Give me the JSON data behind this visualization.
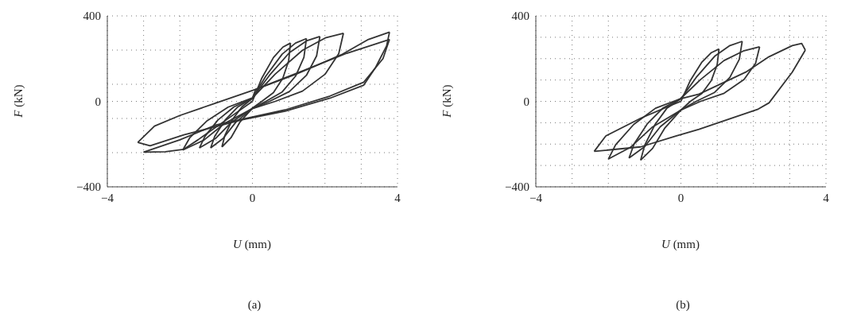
{
  "chart_data": [
    {
      "type": "line",
      "xlabel": "U (mm)",
      "ylabel": "F (kN)",
      "annotations": [
        "(a)"
      ],
      "xlim": [
        -4,
        4
      ],
      "ylim": [
        -400,
        400
      ],
      "xticks": [
        -4,
        {
          "value": -3,
          "label": null
        },
        {
          "value": -2,
          "label": null
        },
        {
          "value": -1,
          "label": null
        },
        0,
        {
          "value": 1,
          "label": null
        },
        {
          "value": 2,
          "label": null
        },
        {
          "value": 3,
          "label": null
        },
        4
      ],
      "yticks": [
        -400,
        {
          "value": -240,
          "label": null
        },
        {
          "value": -80,
          "label": null
        },
        0,
        {
          "value": 80,
          "label": null
        },
        {
          "value": 240,
          "label": null
        },
        400
      ],
      "grid": true,
      "marker": "none",
      "line_style": "solid",
      "legend": false,
      "series": [
        {
          "color": "#333333",
          "x": [
            0,
            0.26,
            0.58,
            0.84,
            1.05
          ],
          "values": [
            0,
            109,
            205,
            254,
            273
          ]
        },
        {
          "color": "#333333",
          "x": [
            1.05,
            1.0,
            0.84,
            0.58,
            0.26,
            0,
            -0.34,
            -0.59,
            -0.84
          ],
          "values": [
            273,
            191,
            109,
            41,
            0,
            -32,
            -96,
            -170,
            -213
          ]
        },
        {
          "color": "#333333",
          "x": [
            -0.84,
            -0.76,
            -0.55,
            -0.29,
            0,
            0.37,
            0.82,
            1.19,
            1.49
          ],
          "values": [
            -213,
            -160,
            -85,
            -26,
            14,
            118,
            221,
            273,
            294
          ]
        },
        {
          "color": "#333333",
          "x": [
            1.49,
            1.42,
            1.19,
            0.82,
            0.37,
            0,
            -0.46,
            -0.81,
            -1.15
          ],
          "values": [
            294,
            206,
            118,
            44,
            0,
            -33,
            -98,
            -174,
            -218
          ]
        },
        {
          "color": "#333333",
          "x": [
            -1.15,
            -1.04,
            -0.75,
            -0.4,
            0,
            0.47,
            1.02,
            1.49,
            1.86
          ],
          "values": [
            -218,
            -164,
            -87,
            -26,
            15,
            122,
            228,
            283,
            304
          ]
        },
        {
          "color": "#333333",
          "x": [
            1.86,
            1.77,
            1.49,
            1.02,
            0.47,
            0,
            -0.58,
            -1.02,
            -1.46
          ],
          "values": [
            304,
            213,
            122,
            46,
            0,
            -33,
            -98,
            -174,
            -218
          ]
        },
        {
          "color": "#333333",
          "x": [
            -1.46,
            -1.31,
            -0.95,
            -0.51,
            0,
            0.63,
            1.38,
            2.01,
            2.51
          ],
          "values": [
            -218,
            -164,
            -87,
            -26,
            15,
            128,
            239,
            297,
            319
          ]
        },
        {
          "color": "#333333",
          "x": [
            2.51,
            2.38,
            2.01,
            1.38,
            0.63,
            0,
            -0.77,
            -1.34,
            -1.92
          ],
          "values": [
            319,
            223,
            128,
            48,
            0,
            -34,
            -103,
            -182,
            -228
          ]
        },
        {
          "color": "#333333",
          "x": [
            -1.92,
            -1.73,
            -1.25,
            -0.67,
            0,
            0.09,
            1.2,
            2.45,
            3.2,
            3.78
          ],
          "values": [
            -228,
            -171,
            -91,
            -27,
            16,
            56,
            127,
            218,
            290,
            324
          ]
        },
        {
          "color": "#333333",
          "x": [
            3.78,
            3.7,
            3.4,
            3.07,
            2.14,
            0.9,
            -0.28,
            -1.89,
            -2.82,
            -3.16
          ],
          "values": [
            324,
            260,
            160,
            76,
            15,
            -46,
            -86,
            -157,
            -208,
            -192
          ]
        },
        {
          "color": "#333333",
          "x": [
            -3.16,
            -2.7,
            -2.0,
            -0.96,
            0.09,
            1.5,
            2.6,
            3.78
          ],
          "values": [
            -192,
            -116,
            -66,
            -5,
            56,
            150,
            225,
            290
          ]
        },
        {
          "color": "#333333",
          "x": [
            3.78,
            3.6,
            3.07,
            2.14,
            0.9,
            -1.0,
            -2.0,
            -3.0
          ],
          "values": [
            290,
            200,
            90,
            25,
            -40,
            -110,
            -180,
            -238
          ]
        },
        {
          "color": "#333333",
          "x": [
            -3.0,
            -2.4,
            -1.9,
            -1.5,
            -0.5,
            0
          ],
          "values": [
            -238,
            -236,
            -225,
            -180,
            -60,
            0
          ]
        }
      ]
    },
    {
      "type": "line",
      "xlabel": "U (mm)",
      "ylabel": "F (kN)",
      "annotations": [
        "(b)"
      ],
      "xlim": [
        -4,
        4
      ],
      "ylim": [
        -400,
        400
      ],
      "xticks": [
        -4,
        {
          "value": -3,
          "label": null
        },
        {
          "value": -2,
          "label": null
        },
        {
          "value": -1,
          "label": null
        },
        0,
        {
          "value": 1,
          "label": null
        },
        {
          "value": 2,
          "label": null
        },
        {
          "value": 3,
          "label": null
        },
        4
      ],
      "yticks": [
        -400,
        {
          "value": -300,
          "label": null
        },
        {
          "value": -200,
          "label": null
        },
        {
          "value": -100,
          "label": null
        },
        0,
        {
          "value": 100,
          "label": null
        },
        {
          "value": 200,
          "label": null
        },
        {
          "value": 300,
          "label": null
        },
        400
      ],
      "grid": true,
      "marker": "none",
      "line_style": "solid",
      "legend": false,
      "series": [
        {
          "color": "#333333",
          "x": [
            0,
            0.26,
            0.58,
            0.84,
            1.05
          ],
          "values": [
            0,
            98,
            184,
            228,
            245
          ]
        },
        {
          "color": "#333333",
          "x": [
            1.05,
            1.0,
            0.84,
            0.58,
            0.26,
            0,
            -0.44,
            -0.78,
            -1.11
          ],
          "values": [
            245,
            172,
            98,
            37,
            0,
            -41,
            -124,
            -220,
            -275
          ]
        },
        {
          "color": "#333333",
          "x": [
            -1.11,
            -1.0,
            -0.72,
            -0.39,
            0,
            0.42,
            0.93,
            1.35,
            1.69
          ],
          "values": [
            -275,
            -206,
            -110,
            -33,
            12,
            112,
            211,
            261,
            281
          ]
        },
        {
          "color": "#333333",
          "x": [
            1.69,
            1.61,
            1.35,
            0.93,
            0.42,
            0,
            -0.57,
            -1.0,
            -1.43
          ],
          "values": [
            281,
            197,
            112,
            42,
            0,
            -40,
            -119,
            -212,
            -265
          ]
        },
        {
          "color": "#333333",
          "x": [
            -1.43,
            -1.29,
            -0.93,
            -0.5,
            0,
            0.54,
            1.19,
            1.74,
            2.17
          ],
          "values": [
            -265,
            -199,
            -106,
            -32,
            14,
            102,
            191,
            237,
            255
          ]
        },
        {
          "color": "#333333",
          "x": [
            2.17,
            2.06,
            1.74,
            1.19,
            0.54,
            0,
            -0.8,
            -1.4,
            -2.0
          ],
          "values": [
            255,
            179,
            102,
            38,
            0,
            -41,
            -122,
            -216,
            -270
          ]
        },
        {
          "color": "#333333",
          "x": [
            -2.0,
            -1.8,
            -1.3,
            -0.7,
            0,
            0.5,
            1.14,
            1.79,
            2.43,
            3.07,
            3.33,
            3.43
          ],
          "values": [
            -270,
            -203,
            -108,
            -32,
            13,
            34,
            85,
            137,
            209,
            261,
            271,
            240
          ]
        },
        {
          "color": "#333333",
          "x": [
            3.43,
            3.07,
            2.43,
            2.11,
            0.5,
            -0.14,
            -1.11,
            -2.39
          ],
          "values": [
            240,
            137,
            -7,
            -38,
            -131,
            -162,
            -213,
            -234
          ]
        },
        {
          "color": "#333333",
          "x": [
            -2.39,
            -2.07,
            -1.11,
            -0.27,
            0
          ],
          "values": [
            -234,
            -162,
            -79,
            -18,
            0
          ]
        }
      ]
    }
  ]
}
